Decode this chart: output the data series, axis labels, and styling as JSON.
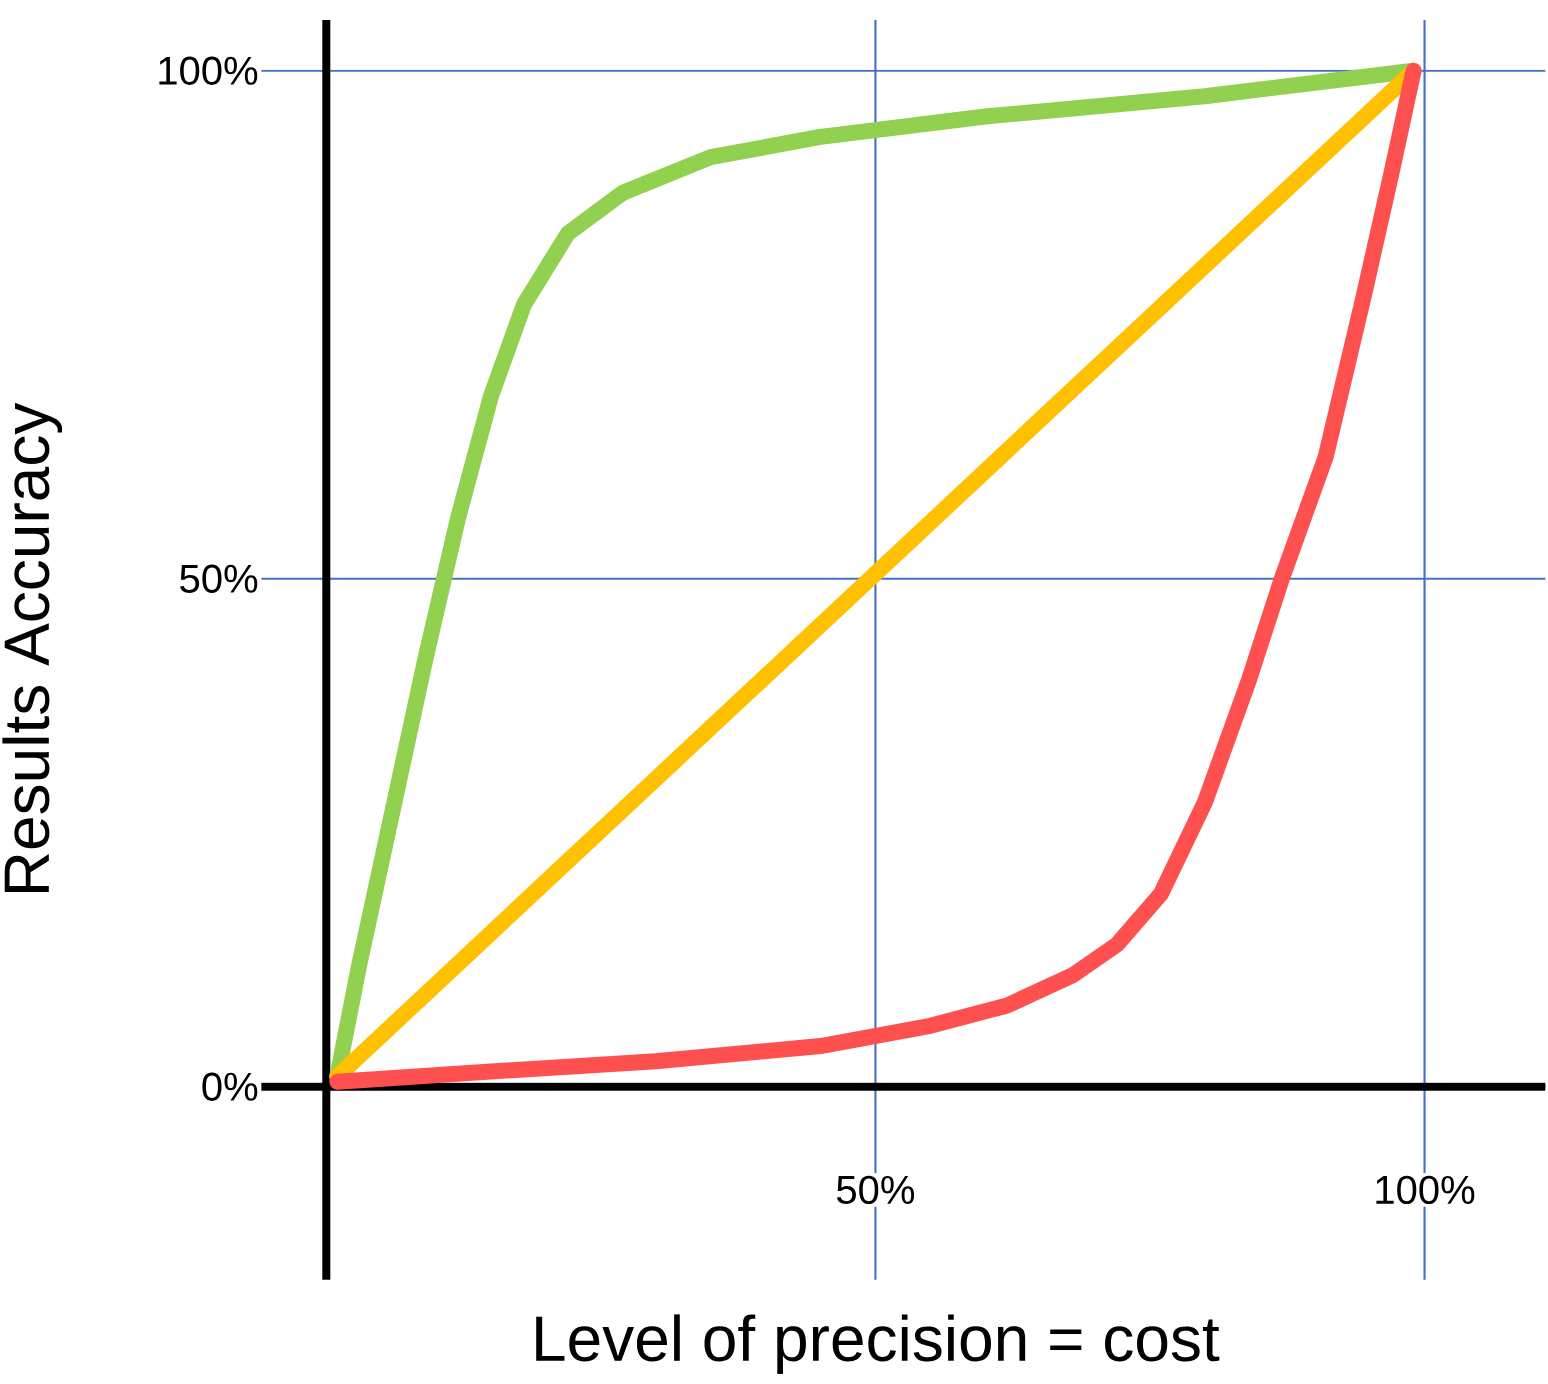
{
  "chart_data": {
    "type": "line",
    "xlabel": "Level of precision = cost",
    "ylabel": "Results Accuracy",
    "xlim": [
      -11,
      111
    ],
    "ylim": [
      -19,
      105
    ],
    "xticks": [
      {
        "value": 50,
        "label": "50%"
      },
      {
        "value": 100,
        "label": "100%"
      }
    ],
    "yticks": [
      {
        "value": 0,
        "label": "0%"
      },
      {
        "value": 50,
        "label": "50%"
      },
      {
        "value": 100,
        "label": "100%"
      }
    ],
    "grid": true,
    "series": [
      {
        "color": "#92d050",
        "x": [
          1,
          3,
          6,
          9,
          12,
          15,
          18,
          22,
          27,
          35,
          45,
          60,
          80,
          99
        ],
        "values": [
          1,
          12,
          27,
          42,
          56,
          68,
          77,
          84,
          88,
          91.5,
          93.5,
          95.5,
          97.5,
          100
        ]
      },
      {
        "color": "#ffc000",
        "x": [
          1,
          99
        ],
        "values": [
          1,
          100
        ]
      },
      {
        "color": "#ff5050",
        "x": [
          1,
          15,
          30,
          45,
          55,
          62,
          68,
          72,
          76,
          80,
          84,
          87,
          91,
          94.5,
          97,
          99
        ],
        "values": [
          0.5,
          1.5,
          2.5,
          4,
          6,
          8,
          11,
          14,
          19,
          28,
          40,
          50,
          62,
          78,
          90,
          100
        ]
      }
    ]
  }
}
